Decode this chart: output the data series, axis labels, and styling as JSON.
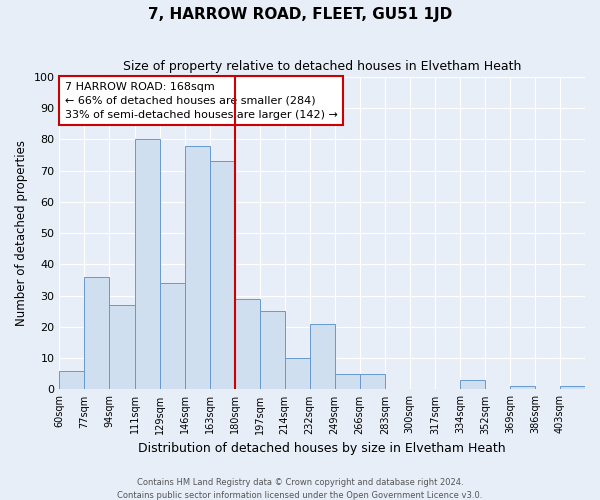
{
  "title": "7, HARROW ROAD, FLEET, GU51 1JD",
  "subtitle": "Size of property relative to detached houses in Elvetham Heath",
  "xlabel": "Distribution of detached houses by size in Elvetham Heath",
  "ylabel": "Number of detached properties",
  "bar_color": "#cfdff0",
  "bar_edge_color": "#6699cc",
  "background_color": "#e8eef8",
  "grid_color": "#ffffff",
  "annotation_box_color": "#cc0000",
  "vline_color": "#cc0000",
  "vline_x_index": 6,
  "annotation_title": "7 HARROW ROAD: 168sqm",
  "annotation_line1": "← 66% of detached houses are smaller (284)",
  "annotation_line2": "33% of semi-detached houses are larger (142) →",
  "categories": [
    "60sqm",
    "77sqm",
    "94sqm",
    "111sqm",
    "129sqm",
    "146sqm",
    "163sqm",
    "180sqm",
    "197sqm",
    "214sqm",
    "232sqm",
    "249sqm",
    "266sqm",
    "283sqm",
    "300sqm",
    "317sqm",
    "334sqm",
    "352sqm",
    "369sqm",
    "386sqm",
    "403sqm"
  ],
  "values": [
    6,
    36,
    27,
    80,
    34,
    78,
    73,
    29,
    25,
    10,
    21,
    5,
    5,
    0,
    0,
    0,
    3,
    0,
    1,
    0,
    1
  ],
  "ylim": [
    0,
    100
  ],
  "yticks": [
    0,
    10,
    20,
    30,
    40,
    50,
    60,
    70,
    80,
    90,
    100
  ],
  "footnote1": "Contains HM Land Registry data © Crown copyright and database right 2024.",
  "footnote2": "Contains public sector information licensed under the Open Government Licence v3.0."
}
